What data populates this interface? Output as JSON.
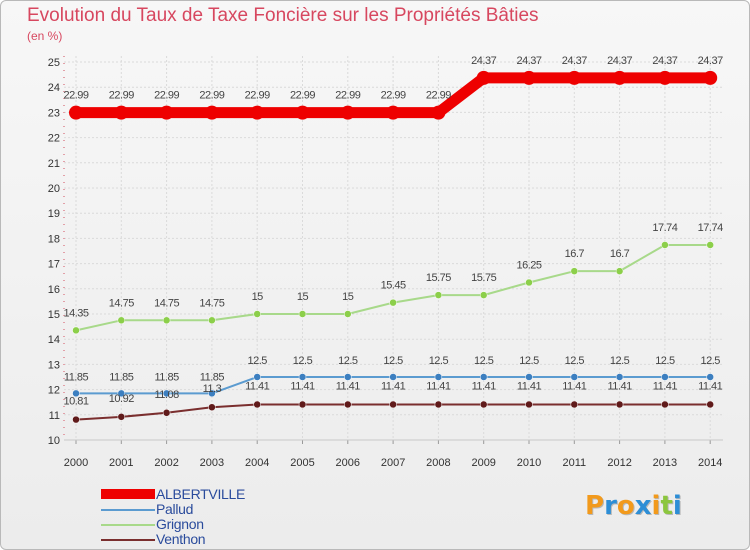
{
  "title": "Evolution du Taux de Taxe Foncière sur les Propriétés Bâties",
  "unit": "(en %)",
  "colors": {
    "background": "#f2f2f2",
    "grid": "#dadada",
    "title": "#d7475f",
    "legend_text": "#2a4b9c"
  },
  "chart_data": {
    "type": "line",
    "title": "Evolution du Taux de Taxe Foncière sur les Propriétés Bâties",
    "ylabel": "(en %)",
    "xlabel": "",
    "x": [
      "2000",
      "2001",
      "2002",
      "2003",
      "2004",
      "2005",
      "2006",
      "2007",
      "2008",
      "2009",
      "2010",
      "2011",
      "2012",
      "2013",
      "2014"
    ],
    "ylim": [
      10,
      25
    ],
    "yticks": [
      "10",
      "11",
      "12",
      "13",
      "14",
      "15",
      "16",
      "17",
      "18",
      "19",
      "20",
      "21",
      "22",
      "23",
      "24",
      "25"
    ],
    "grid": true,
    "legend_position": "bottom-left",
    "series": [
      {
        "name": "ALBERTVILLE",
        "color": "#ee0000",
        "thick": true,
        "values": [
          22.99,
          22.99,
          22.99,
          22.99,
          22.99,
          22.99,
          22.99,
          22.99,
          22.99,
          24.37,
          24.37,
          24.37,
          24.37,
          24.37,
          24.37
        ],
        "labels": [
          "22.99",
          "22.99",
          "22.99",
          "22.99",
          "22.99",
          "22.99",
          "22.99",
          "22.99",
          "22.99",
          "24.37",
          "24.37",
          "24.37",
          "24.37",
          "24.37",
          "24.37"
        ]
      },
      {
        "name": "Pallud",
        "color": "#5b9bd0",
        "point_color": "#3c7fc0",
        "values": [
          11.85,
          11.85,
          11.85,
          11.85,
          12.5,
          12.5,
          12.5,
          12.5,
          12.5,
          12.5,
          12.5,
          12.5,
          12.5,
          12.5,
          12.5
        ],
        "labels": [
          "11.85",
          "11.85",
          "11.85",
          "11.85",
          "12.5",
          "12.5",
          "12.5",
          "12.5",
          "12.5",
          "12.5",
          "12.5",
          "12.5",
          "12.5",
          "12.5",
          "12.5"
        ]
      },
      {
        "name": "Grignon",
        "color": "#a8d98a",
        "point_color": "#8ccf4a",
        "values": [
          14.35,
          14.75,
          14.75,
          14.75,
          15,
          15,
          15,
          15.45,
          15.75,
          15.75,
          16.25,
          16.7,
          16.7,
          17.74,
          17.74
        ],
        "labels": [
          "14.35",
          "14.75",
          "14.75",
          "14.75",
          "15",
          "15",
          "15",
          "15.45",
          "15.75",
          "15.75",
          "16.25",
          "16.7",
          "16.7",
          "17.74",
          "17.74"
        ]
      },
      {
        "name": "Venthon",
        "color": "#7a2e2e",
        "point_color": "#601a1a",
        "values": [
          10.81,
          10.92,
          11.08,
          11.3,
          11.41,
          11.41,
          11.41,
          11.41,
          11.41,
          11.41,
          11.41,
          11.41,
          11.41,
          11.41,
          11.41
        ],
        "labels": [
          "10.81",
          "10.92",
          "11.08",
          "11.3",
          "11.41",
          "11.41",
          "11.41",
          "11.41",
          "11.41",
          "11.41",
          "11.41",
          "11.41",
          "11.41",
          "11.41",
          "11.41"
        ]
      }
    ]
  },
  "logo": {
    "text": "Proxiti",
    "letters": [
      "P",
      "r",
      "o",
      "x",
      "i",
      "t",
      "i"
    ],
    "letter_colors": [
      "#f29a1c",
      "#2d8ed6",
      "#f29a1c",
      "#2d8ed6",
      "#f29a1c",
      "#8cc63f",
      "#2d8ed6"
    ]
  }
}
